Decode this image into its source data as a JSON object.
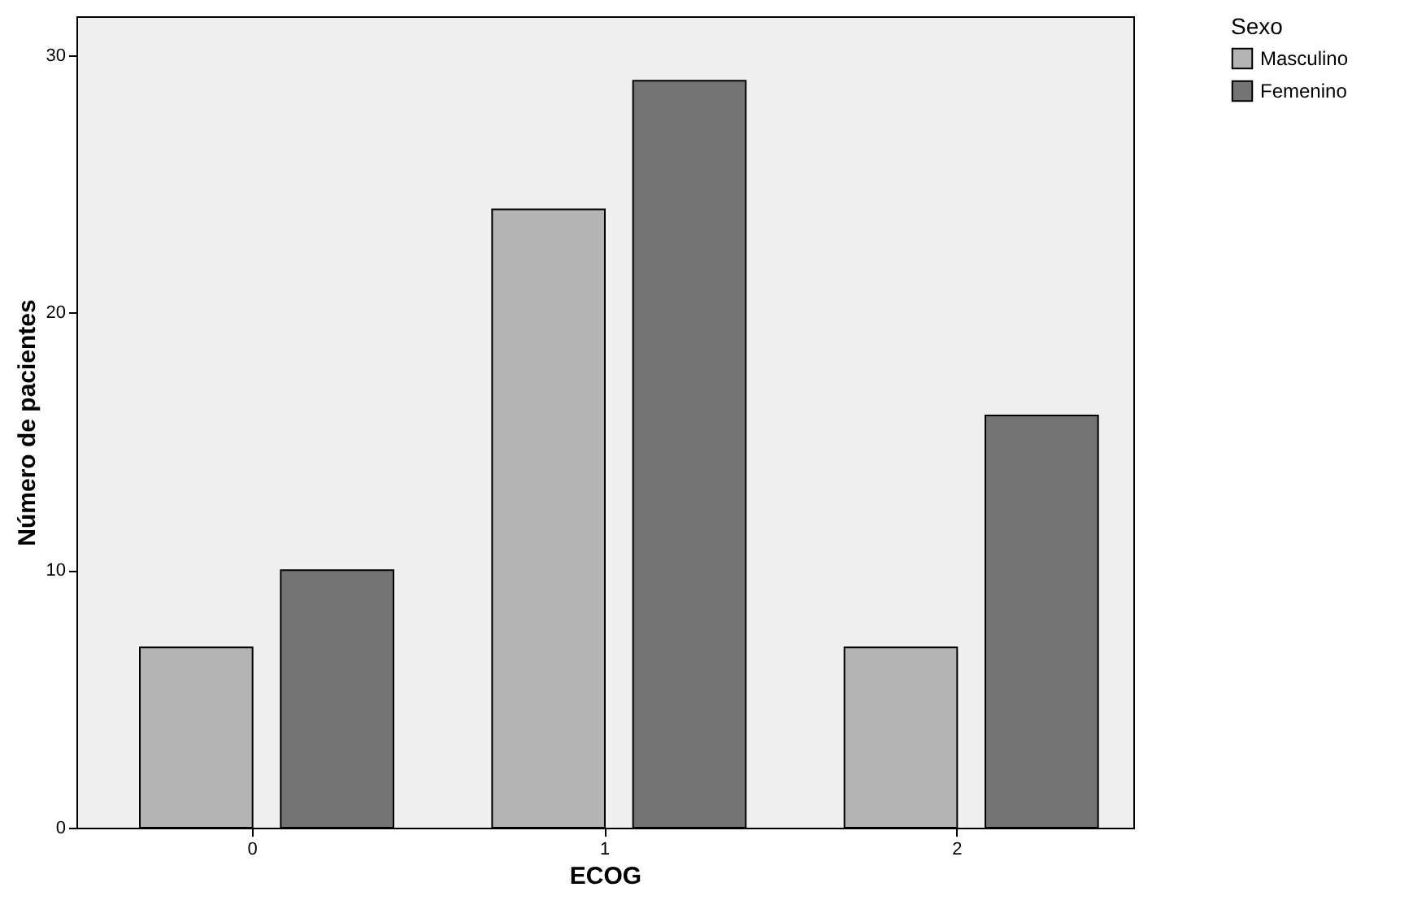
{
  "chart_data": {
    "type": "bar",
    "xlabel": "ECOG",
    "ylabel": "Número de pacientes",
    "legend_title": "Sexo",
    "categories": [
      "0",
      "1",
      "2"
    ],
    "series": [
      {
        "name": "Masculino",
        "color": "#b4b4b4",
        "values": [
          7,
          24,
          7
        ]
      },
      {
        "name": "Femenino",
        "color": "#737373",
        "values": [
          10,
          29,
          16
        ]
      }
    ],
    "ylim": [
      0,
      31.5
    ],
    "yticks": [
      0,
      10,
      20,
      30
    ],
    "grid": false,
    "legend": "top right"
  }
}
